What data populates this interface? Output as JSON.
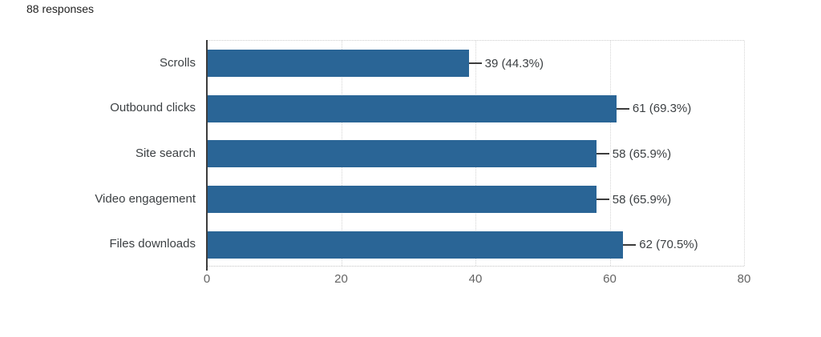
{
  "header": {
    "responses_label": "88 responses"
  },
  "colors": {
    "bar": "#2a6596",
    "axis": "#3c3c3c",
    "gridline": "#d4d4d4",
    "tick_label": "#646464",
    "category_label": "#3c4043",
    "value_label": "#3c4043",
    "background": "#ffffff"
  },
  "chart_data": {
    "type": "bar",
    "orientation": "horizontal",
    "title": "88 responses",
    "categories": [
      "Scrolls",
      "Outbound clicks",
      "Site search",
      "Video engagement",
      "Files downloads"
    ],
    "values": [
      39,
      61,
      58,
      58,
      62
    ],
    "percentages": [
      44.3,
      69.3,
      65.9,
      65.9,
      70.5
    ],
    "value_labels": [
      "39 (44.3%)",
      "61 (69.3%)",
      "58 (65.9%)",
      "58 (65.9%)",
      "62 (70.5%)"
    ],
    "total_responses": 88,
    "xlabel": "",
    "ylabel": "",
    "xlim": [
      0,
      80
    ],
    "x_ticks": [
      0,
      20,
      40,
      60,
      80
    ],
    "grid": "vertical-dotted",
    "legend": "none"
  }
}
